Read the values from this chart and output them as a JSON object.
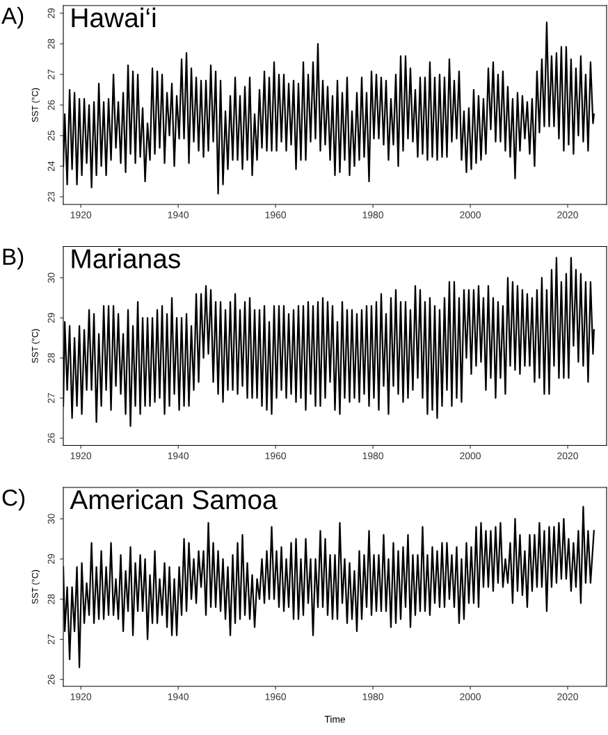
{
  "chart_data": [
    {
      "type": "line",
      "title": "Hawai‘i",
      "ylabel": "SST (°C)",
      "annotations": [
        "A)"
      ],
      "xlim": [
        1916.4,
        2028
      ],
      "xticks": [
        1920,
        1940,
        1960,
        1980,
        2000,
        2020
      ],
      "ylim": [
        22.75,
        29.25
      ],
      "yticks": [
        23,
        24,
        25,
        26,
        27,
        28,
        29
      ],
      "grid": false,
      "legend": false,
      "x": [
        1916.4,
        1916.7,
        1917.2,
        1917.7,
        1918.2,
        1918.7,
        1919.2,
        1919.7,
        1920.2,
        1920.7,
        1921.2,
        1921.7,
        1922.2,
        1922.7,
        1923.2,
        1923.7,
        1924.2,
        1924.7,
        1925.2,
        1925.7,
        1926.2,
        1926.7,
        1927.2,
        1927.7,
        1928.2,
        1928.7,
        1929.2,
        1929.7,
        1930.2,
        1930.7,
        1931.2,
        1931.7,
        1932.2,
        1932.7,
        1933.2,
        1933.7,
        1934.2,
        1934.7,
        1935.2,
        1935.7,
        1936.2,
        1936.7,
        1937.2,
        1937.7,
        1938.2,
        1938.7,
        1939.2,
        1939.7,
        1940.2,
        1940.7,
        1941.2,
        1941.7,
        1942.2,
        1942.7,
        1943.2,
        1943.7,
        1944.2,
        1944.7,
        1945.2,
        1945.7,
        1946.2,
        1946.7,
        1947.2,
        1947.7,
        1948.2,
        1948.7,
        1949.2,
        1949.7,
        1950.2,
        1950.7,
        1951.2,
        1951.7,
        1952.2,
        1952.7,
        1953.2,
        1953.7,
        1954.2,
        1954.7,
        1955.2,
        1955.7,
        1956.2,
        1956.7,
        1957.2,
        1957.7,
        1958.2,
        1958.7,
        1959.2,
        1959.7,
        1960.2,
        1960.7,
        1961.2,
        1961.7,
        1962.2,
        1962.7,
        1963.2,
        1963.7,
        1964.2,
        1964.7,
        1965.2,
        1965.7,
        1966.2,
        1966.7,
        1967.2,
        1967.7,
        1968.2,
        1968.7,
        1969.2,
        1969.7,
        1970.2,
        1970.7,
        1971.2,
        1971.7,
        1972.2,
        1972.7,
        1973.2,
        1973.7,
        1974.2,
        1974.7,
        1975.2,
        1975.7,
        1976.2,
        1976.7,
        1977.2,
        1977.7,
        1978.2,
        1978.7,
        1979.2,
        1979.7,
        1980.2,
        1980.7,
        1981.2,
        1981.7,
        1982.2,
        1982.7,
        1983.2,
        1983.7,
        1984.2,
        1984.7,
        1985.2,
        1985.7,
        1986.2,
        1986.7,
        1987.2,
        1987.7,
        1988.2,
        1988.7,
        1989.2,
        1989.7,
        1990.2,
        1990.7,
        1991.2,
        1991.7,
        1992.2,
        1992.7,
        1993.2,
        1993.7,
        1994.2,
        1994.7,
        1995.2,
        1995.7,
        1996.2,
        1996.7,
        1997.2,
        1997.7,
        1998.2,
        1998.7,
        1999.2,
        1999.7,
        2000.2,
        2000.7,
        2001.2,
        2001.7,
        2002.2,
        2002.7,
        2003.2,
        2003.7,
        2004.2,
        2004.7,
        2005.2,
        2005.7,
        2006.2,
        2006.7,
        2007.2,
        2007.7,
        2008.2,
        2008.7,
        2009.2,
        2009.7,
        2010.2,
        2010.7,
        2011.2,
        2011.7,
        2012.2,
        2012.7,
        2013.2,
        2013.7,
        2014.2,
        2014.7,
        2015.2,
        2015.7,
        2016.2,
        2016.7,
        2017.2,
        2017.7,
        2018.2,
        2018.7,
        2019.2,
        2019.7,
        2020.2,
        2020.7,
        2021.2,
        2021.7,
        2022.2,
        2022.7,
        2023.2,
        2023.7,
        2024.2,
        2024.7,
        2025.2,
        2025.4
      ],
      "series": [
        {
          "color": "#000000",
          "values": [
            24.0,
            25.7,
            23.4,
            26.5,
            23.9,
            26.4,
            23.4,
            26.2,
            23.7,
            26.2,
            24.1,
            26.0,
            23.3,
            26.1,
            23.7,
            26.7,
            24.0,
            26.1,
            23.7,
            26.2,
            24.2,
            27.0,
            24.6,
            26.1,
            24.1,
            26.4,
            23.8,
            27.3,
            24.4,
            27.1,
            24.1,
            27.0,
            24.3,
            25.9,
            23.5,
            25.4,
            24.2,
            27.2,
            24.4,
            27.1,
            24.6,
            27.0,
            24.1,
            26.4,
            25.0,
            26.7,
            24.0,
            26.3,
            24.9,
            27.5,
            24.9,
            27.7,
            24.1,
            27.2,
            24.8,
            26.9,
            24.5,
            26.8,
            24.3,
            26.8,
            24.5,
            27.3,
            24.8,
            27.1,
            23.1,
            26.8,
            23.4,
            25.8,
            23.9,
            26.3,
            24.2,
            26.9,
            24.2,
            26.3,
            23.9,
            26.6,
            24.2,
            26.9,
            23.7,
            25.7,
            24.2,
            26.5,
            24.6,
            27.1,
            24.5,
            26.9,
            24.5,
            27.4,
            24.5,
            27.0,
            24.8,
            27.0,
            24.5,
            26.7,
            24.7,
            26.8,
            23.9,
            26.7,
            24.2,
            27.4,
            24.2,
            27.0,
            24.8,
            27.4,
            24.9,
            28.0,
            24.5,
            26.8,
            24.7,
            26.6,
            24.2,
            26.3,
            23.7,
            26.8,
            23.8,
            26.4,
            24.2,
            26.9,
            23.7,
            25.8,
            24.0,
            26.4,
            24.2,
            26.9,
            24.3,
            26.4,
            23.5,
            27.1,
            24.9,
            27.0,
            24.9,
            26.9,
            24.7,
            26.8,
            24.2,
            26.2,
            24.7,
            27.0,
            24.0,
            27.6,
            24.5,
            27.6,
            24.9,
            27.2,
            24.8,
            26.5,
            24.3,
            26.9,
            24.4,
            26.9,
            24.2,
            27.4,
            24.3,
            26.9,
            24.2,
            27.0,
            24.3,
            26.9,
            24.3,
            27.5,
            24.8,
            26.8,
            24.9,
            27.1,
            24.2,
            25.8,
            23.8,
            25.9,
            23.9,
            26.5,
            24.1,
            26.3,
            24.2,
            26.2,
            24.4,
            27.2,
            25.2,
            27.4,
            24.8,
            27.0,
            24.8,
            27.1,
            24.5,
            26.6,
            24.3,
            26.2,
            23.6,
            26.4,
            24.5,
            26.3,
            24.9,
            26.1,
            24.4,
            26.2,
            24.0,
            27.1,
            25.1,
            27.5,
            25.3,
            28.7,
            25.3,
            27.6,
            25.3,
            27.7,
            24.9,
            27.9,
            24.5,
            27.9,
            24.7,
            27.5,
            24.4,
            27.2,
            25.0,
            27.6,
            24.8,
            27.0,
            24.5,
            27.4,
            25.4,
            25.7
          ]
        }
      ]
    },
    {
      "type": "line",
      "title": "Marianas",
      "ylabel": "SST (°C)",
      "annotations": [
        "B)"
      ],
      "xlim": [
        1916.4,
        2028
      ],
      "xticks": [
        1920,
        1940,
        1960,
        1980,
        2000,
        2020
      ],
      "ylim": [
        25.82,
        30.78
      ],
      "yticks": [
        26,
        27,
        28,
        29,
        30
      ],
      "grid": false,
      "legend": false,
      "x": [
        1916.4,
        1916.7,
        1917.2,
        1917.7,
        1918.2,
        1918.7,
        1919.2,
        1919.7,
        1920.2,
        1920.7,
        1921.2,
        1921.7,
        1922.2,
        1922.7,
        1923.2,
        1923.7,
        1924.2,
        1924.7,
        1925.2,
        1925.7,
        1926.2,
        1926.7,
        1927.2,
        1927.7,
        1928.2,
        1928.7,
        1929.2,
        1929.7,
        1930.2,
        1930.7,
        1931.2,
        1931.7,
        1932.2,
        1932.7,
        1933.2,
        1933.7,
        1934.2,
        1934.7,
        1935.2,
        1935.7,
        1936.2,
        1936.7,
        1937.2,
        1937.7,
        1938.2,
        1938.7,
        1939.2,
        1939.7,
        1940.2,
        1940.7,
        1941.2,
        1941.7,
        1942.2,
        1942.7,
        1943.2,
        1943.7,
        1944.2,
        1944.7,
        1945.2,
        1945.7,
        1946.2,
        1946.7,
        1947.2,
        1947.7,
        1948.2,
        1948.7,
        1949.2,
        1949.7,
        1950.2,
        1950.7,
        1951.2,
        1951.7,
        1952.2,
        1952.7,
        1953.2,
        1953.7,
        1954.2,
        1954.7,
        1955.2,
        1955.7,
        1956.2,
        1956.7,
        1957.2,
        1957.7,
        1958.2,
        1958.7,
        1959.2,
        1959.7,
        1960.2,
        1960.7,
        1961.2,
        1961.7,
        1962.2,
        1962.7,
        1963.2,
        1963.7,
        1964.2,
        1964.7,
        1965.2,
        1965.7,
        1966.2,
        1966.7,
        1967.2,
        1967.7,
        1968.2,
        1968.7,
        1969.2,
        1969.7,
        1970.2,
        1970.7,
        1971.2,
        1971.7,
        1972.2,
        1972.7,
        1973.2,
        1973.7,
        1974.2,
        1974.7,
        1975.2,
        1975.7,
        1976.2,
        1976.7,
        1977.2,
        1977.7,
        1978.2,
        1978.7,
        1979.2,
        1979.7,
        1980.2,
        1980.7,
        1981.2,
        1981.7,
        1982.2,
        1982.7,
        1983.2,
        1983.7,
        1984.2,
        1984.7,
        1985.2,
        1985.7,
        1986.2,
        1986.7,
        1987.2,
        1987.7,
        1988.2,
        1988.7,
        1989.2,
        1989.7,
        1990.2,
        1990.7,
        1991.2,
        1991.7,
        1992.2,
        1992.7,
        1993.2,
        1993.7,
        1994.2,
        1994.7,
        1995.2,
        1995.7,
        1996.2,
        1996.7,
        1997.2,
        1997.7,
        1998.2,
        1998.7,
        1999.2,
        1999.7,
        2000.2,
        2000.7,
        2001.2,
        2001.7,
        2002.2,
        2002.7,
        2003.2,
        2003.7,
        2004.2,
        2004.7,
        2005.2,
        2005.7,
        2006.2,
        2006.7,
        2007.2,
        2007.7,
        2008.2,
        2008.7,
        2009.2,
        2009.7,
        2010.2,
        2010.7,
        2011.2,
        2011.7,
        2012.2,
        2012.7,
        2013.2,
        2013.7,
        2014.2,
        2014.7,
        2015.2,
        2015.7,
        2016.2,
        2016.7,
        2017.2,
        2017.7,
        2018.2,
        2018.7,
        2019.2,
        2019.7,
        2020.2,
        2020.7,
        2021.2,
        2021.7,
        2022.2,
        2022.7,
        2023.2,
        2023.7,
        2024.2,
        2024.7,
        2025.2,
        2025.4
      ],
      "series": [
        {
          "color": "#000000",
          "values": [
            26.8,
            28.9,
            27.2,
            28.8,
            26.5,
            28.5,
            26.8,
            28.8,
            26.6,
            28.7,
            27.2,
            29.2,
            27.2,
            29.1,
            26.4,
            28.6,
            26.8,
            29.3,
            27.2,
            29.3,
            26.7,
            29.3,
            27.3,
            29.1,
            27.1,
            28.6,
            26.6,
            29.2,
            26.3,
            28.8,
            26.8,
            29.4,
            26.6,
            29.0,
            26.8,
            29.0,
            26.8,
            29.0,
            26.9,
            29.2,
            27.0,
            29.3,
            26.6,
            29.1,
            26.8,
            29.5,
            27.1,
            29.0,
            26.7,
            29.0,
            26.8,
            29.1,
            26.8,
            28.8,
            27.2,
            29.6,
            27.4,
            29.6,
            28.0,
            29.8,
            28.1,
            29.7,
            27.4,
            29.4,
            27.1,
            29.4,
            26.9,
            29.2,
            27.2,
            29.4,
            27.2,
            29.6,
            27.1,
            29.2,
            27.3,
            29.4,
            27.0,
            29.5,
            27.0,
            29.2,
            27.0,
            29.2,
            26.8,
            29.3,
            26.7,
            28.9,
            26.6,
            29.3,
            27.0,
            29.3,
            27.2,
            29.3,
            27.0,
            29.1,
            27.1,
            29.2,
            26.9,
            29.3,
            27.0,
            29.3,
            26.7,
            29.4,
            27.1,
            29.3,
            26.8,
            29.4,
            26.8,
            29.5,
            27.0,
            29.4,
            27.4,
            29.3,
            26.7,
            28.9,
            26.6,
            29.4,
            27.0,
            29.2,
            26.9,
            29.2,
            27.0,
            29.1,
            26.9,
            29.2,
            27.1,
            29.3,
            26.8,
            29.3,
            27.0,
            29.4,
            26.7,
            29.6,
            27.3,
            29.1,
            26.6,
            29.5,
            27.3,
            29.7,
            27.1,
            29.4,
            26.9,
            29.4,
            27.0,
            29.2,
            27.2,
            29.8,
            27.5,
            29.7,
            27.0,
            29.4,
            26.6,
            29.5,
            26.7,
            29.3,
            26.5,
            29.2,
            26.8,
            29.5,
            27.2,
            29.9,
            26.8,
            29.9,
            27.0,
            29.5,
            26.9,
            29.7,
            28.0,
            29.7,
            27.6,
            29.7,
            27.8,
            29.8,
            27.9,
            29.5,
            27.2,
            29.8,
            27.5,
            29.5,
            27.0,
            29.4,
            27.5,
            29.3,
            27.1,
            30.0,
            27.8,
            29.9,
            27.7,
            29.8,
            27.6,
            29.7,
            27.8,
            29.6,
            27.8,
            29.5,
            27.4,
            29.7,
            27.5,
            30.0,
            27.1,
            29.7,
            27.1,
            30.2,
            27.8,
            30.5,
            27.5,
            29.9,
            27.5,
            30.1,
            27.5,
            30.5,
            28.3,
            30.2,
            27.9,
            30.1,
            27.8,
            29.9,
            27.4,
            29.9,
            28.1,
            28.7
          ]
        }
      ]
    },
    {
      "type": "line",
      "title": "American Samoa",
      "ylabel": "SST (°C)",
      "xlabel": "Time",
      "annotations": [
        "C)"
      ],
      "xlim": [
        1916.4,
        2028
      ],
      "xticks": [
        1920,
        1940,
        1960,
        1980,
        2000,
        2020
      ],
      "ylim": [
        25.83,
        30.78
      ],
      "yticks": [
        26,
        27,
        28,
        29,
        30
      ],
      "grid": false,
      "legend": false,
      "x": [
        1916.4,
        1916.7,
        1917.2,
        1917.7,
        1918.2,
        1918.7,
        1919.2,
        1919.7,
        1920.2,
        1920.7,
        1921.2,
        1921.7,
        1922.2,
        1922.7,
        1923.2,
        1923.7,
        1924.2,
        1924.7,
        1925.2,
        1925.7,
        1926.2,
        1926.7,
        1927.2,
        1927.7,
        1928.2,
        1928.7,
        1929.2,
        1929.7,
        1930.2,
        1930.7,
        1931.2,
        1931.7,
        1932.2,
        1932.7,
        1933.2,
        1933.7,
        1934.2,
        1934.7,
        1935.2,
        1935.7,
        1936.2,
        1936.7,
        1937.2,
        1937.7,
        1938.2,
        1938.7,
        1939.2,
        1939.7,
        1940.2,
        1940.7,
        1941.2,
        1941.7,
        1942.2,
        1942.7,
        1943.2,
        1943.7,
        1944.2,
        1944.7,
        1945.2,
        1945.7,
        1946.2,
        1946.7,
        1947.2,
        1947.7,
        1948.2,
        1948.7,
        1949.2,
        1949.7,
        1950.2,
        1950.7,
        1951.2,
        1951.7,
        1952.2,
        1952.7,
        1953.2,
        1953.7,
        1954.2,
        1954.7,
        1955.2,
        1955.7,
        1956.2,
        1956.7,
        1957.2,
        1957.7,
        1958.2,
        1958.7,
        1959.2,
        1959.7,
        1960.2,
        1960.7,
        1961.2,
        1961.7,
        1962.2,
        1962.7,
        1963.2,
        1963.7,
        1964.2,
        1964.7,
        1965.2,
        1965.7,
        1966.2,
        1966.7,
        1967.2,
        1967.7,
        1968.2,
        1968.7,
        1969.2,
        1969.7,
        1970.2,
        1970.7,
        1971.2,
        1971.7,
        1972.2,
        1972.7,
        1973.2,
        1973.7,
        1974.2,
        1974.7,
        1975.2,
        1975.7,
        1976.2,
        1976.7,
        1977.2,
        1977.7,
        1978.2,
        1978.7,
        1979.2,
        1979.7,
        1980.2,
        1980.7,
        1981.2,
        1981.7,
        1982.2,
        1982.7,
        1983.2,
        1983.7,
        1984.2,
        1984.7,
        1985.2,
        1985.7,
        1986.2,
        1986.7,
        1987.2,
        1987.7,
        1988.2,
        1988.7,
        1989.2,
        1989.7,
        1990.2,
        1990.7,
        1991.2,
        1991.7,
        1992.2,
        1992.7,
        1993.2,
        1993.7,
        1994.2,
        1994.7,
        1995.2,
        1995.7,
        1996.2,
        1996.7,
        1997.2,
        1997.7,
        1998.2,
        1998.7,
        1999.2,
        1999.7,
        2000.2,
        2000.7,
        2001.2,
        2001.7,
        2002.2,
        2002.7,
        2003.2,
        2003.7,
        2004.2,
        2004.7,
        2005.2,
        2005.7,
        2006.2,
        2006.7,
        2007.2,
        2007.7,
        2008.2,
        2008.7,
        2009.2,
        2009.7,
        2010.2,
        2010.7,
        2011.2,
        2011.7,
        2012.2,
        2012.7,
        2013.2,
        2013.7,
        2014.2,
        2014.7,
        2015.2,
        2015.7,
        2016.2,
        2016.7,
        2017.2,
        2017.7,
        2018.2,
        2018.7,
        2019.2,
        2019.7,
        2020.2,
        2020.7,
        2021.2,
        2021.7,
        2022.2,
        2022.7,
        2023.2,
        2023.7,
        2024.2,
        2024.7,
        2025.4
      ],
      "series": [
        {
          "color": "#000000",
          "values": [
            28.8,
            27.2,
            28.3,
            26.5,
            28.3,
            27.2,
            28.8,
            26.3,
            28.9,
            27.4,
            28.4,
            27.6,
            29.4,
            27.4,
            28.8,
            27.5,
            29.2,
            27.5,
            28.8,
            27.6,
            29.4,
            27.6,
            28.5,
            27.5,
            29.1,
            27.2,
            28.7,
            27.7,
            29.3,
            27.1,
            28.9,
            27.7,
            29.1,
            27.7,
            29.0,
            27.0,
            28.6,
            27.4,
            29.2,
            27.4,
            28.5,
            27.6,
            28.9,
            27.3,
            28.8,
            27.1,
            28.5,
            27.1,
            28.8,
            27.6,
            29.5,
            27.7,
            29.4,
            28.0,
            29.0,
            27.9,
            29.2,
            28.3,
            29.2,
            27.6,
            29.9,
            27.8,
            29.4,
            27.8,
            29.2,
            27.7,
            29.0,
            27.5,
            28.8,
            27.1,
            29.1,
            27.4,
            29.4,
            27.5,
            29.6,
            27.6,
            28.9,
            27.5,
            28.6,
            27.3,
            28.5,
            28.0,
            29.0,
            27.9,
            29.2,
            28.0,
            29.8,
            28.0,
            29.2,
            27.8,
            29.3,
            27.7,
            29.0,
            27.8,
            29.4,
            27.5,
            29.5,
            27.5,
            29.0,
            27.6,
            29.5,
            27.9,
            29.0,
            27.1,
            29.0,
            27.8,
            29.7,
            27.8,
            29.5,
            27.6,
            29.1,
            27.5,
            29.1,
            27.5,
            29.9,
            27.9,
            29.0,
            27.4,
            28.9,
            27.5,
            28.7,
            27.2,
            29.2,
            27.5,
            29.1,
            27.8,
            29.7,
            27.6,
            29.1,
            27.7,
            29.1,
            27.7,
            29.6,
            27.7,
            29.0,
            27.3,
            29.4,
            27.4,
            29.2,
            27.5,
            29.3,
            27.8,
            29.6,
            27.3,
            29.1,
            27.6,
            29.1,
            27.7,
            29.8,
            27.7,
            29.1,
            27.6,
            29.3,
            27.9,
            29.2,
            27.8,
            29.4,
            27.8,
            29.4,
            28.0,
            29.1,
            27.8,
            29.3,
            27.4,
            29.0,
            27.5,
            29.4,
            27.9,
            29.3,
            27.9,
            29.8,
            27.8,
            29.9,
            28.3,
            29.7,
            28.3,
            29.7,
            28.2,
            29.8,
            28.4,
            29.9,
            28.3,
            29.0,
            28.4,
            29.4,
            27.9,
            30.0,
            28.2,
            29.6,
            28.1,
            29.2,
            27.8,
            29.6,
            28.2,
            29.6,
            28.3,
            29.9,
            28.3,
            29.7,
            27.7,
            29.8,
            28.3,
            29.8,
            28.4,
            29.9,
            28.5,
            30.0,
            28.5,
            29.5,
            28.2,
            29.4,
            28.3,
            29.7,
            27.9,
            30.3,
            28.4,
            29.7,
            28.4,
            29.7
          ]
        }
      ]
    }
  ]
}
